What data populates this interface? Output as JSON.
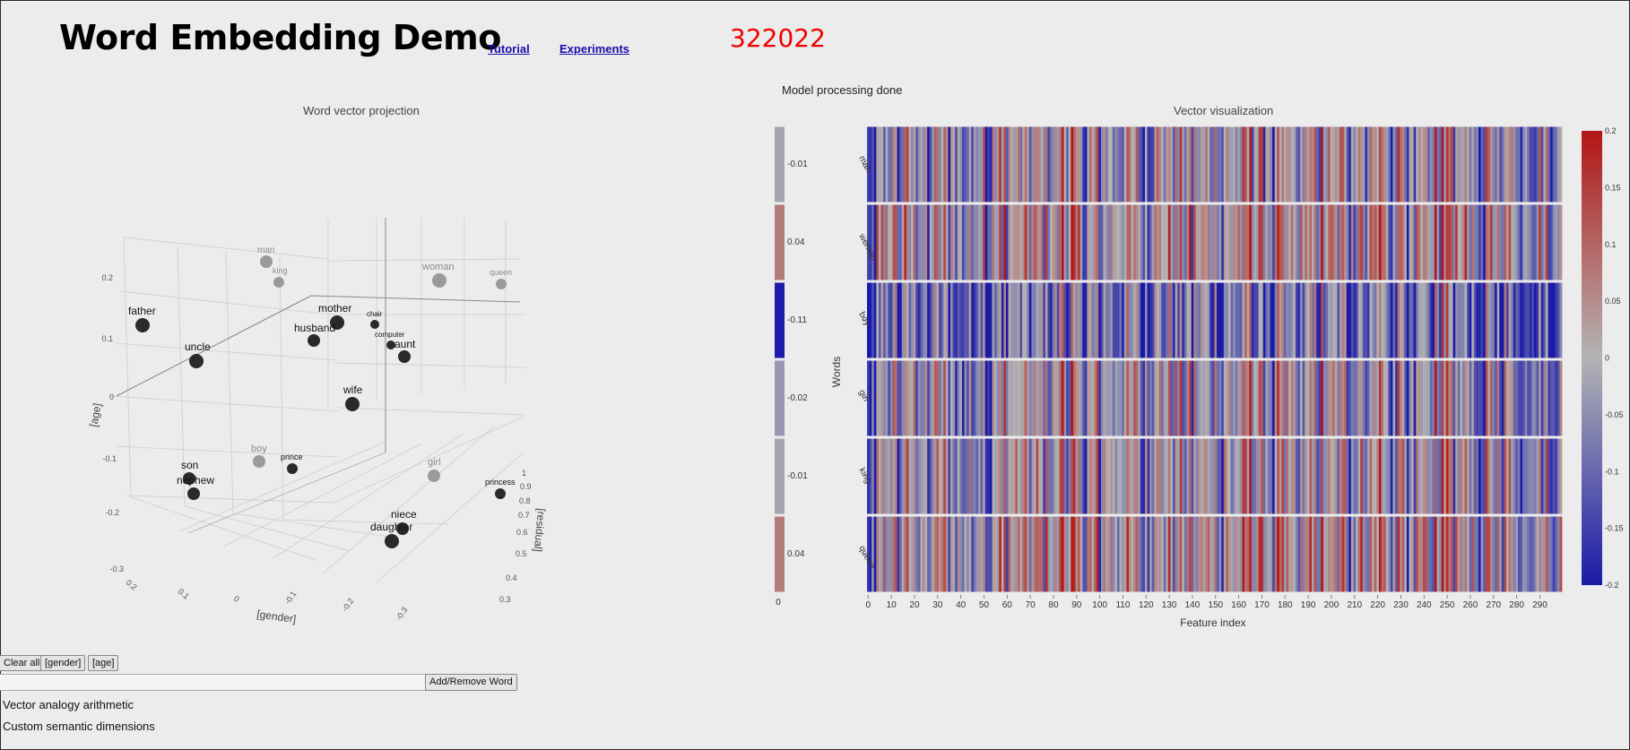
{
  "header": {
    "title": "Word Embedding Demo",
    "links": [
      "Tutorial",
      "Experiments"
    ],
    "counter": "322022"
  },
  "status": "Model processing done",
  "projection": {
    "title": "Word vector projection",
    "axes": {
      "x": "[gender]",
      "y": "[age]",
      "z": "[residual]"
    },
    "y_ticks": [
      "0.2",
      "0.1",
      "0",
      "-0.1",
      "-0.2",
      "-0.3"
    ],
    "x_ticks": [
      "0.2",
      "0.1",
      "0",
      "-0.1",
      "-0.2",
      "-0.3"
    ],
    "z_ticks": [
      "1",
      "0.9",
      "0.8",
      "0.7",
      "0.6",
      "0.5",
      "0.4",
      "0.3"
    ],
    "colors": {
      "active": "#2a2a2a",
      "inactive": "#9a9a9a"
    },
    "words": [
      {
        "label": "man",
        "style": "inactive"
      },
      {
        "label": "king",
        "style": "inactive"
      },
      {
        "label": "woman",
        "style": "inactive"
      },
      {
        "label": "queen",
        "style": "inactive"
      },
      {
        "label": "father",
        "style": "active"
      },
      {
        "label": "mother",
        "style": "active"
      },
      {
        "label": "chair",
        "style": "active"
      },
      {
        "label": "husband",
        "style": "active"
      },
      {
        "label": "computer",
        "style": "active"
      },
      {
        "label": "aunt",
        "style": "active"
      },
      {
        "label": "uncle",
        "style": "active"
      },
      {
        "label": "wife",
        "style": "active"
      },
      {
        "label": "boy",
        "style": "inactive"
      },
      {
        "label": "prince",
        "style": "active"
      },
      {
        "label": "girl",
        "style": "inactive"
      },
      {
        "label": "son",
        "style": "active"
      },
      {
        "label": "nephew",
        "style": "active"
      },
      {
        "label": "princess",
        "style": "active"
      },
      {
        "label": "niece",
        "style": "active"
      },
      {
        "label": "daughter",
        "style": "active"
      }
    ]
  },
  "controls": {
    "clear_label": "Clear all",
    "gender_label": "[gender]",
    "age_label": "[age]",
    "input_value": "",
    "add_remove_label": "Add/Remove Word"
  },
  "sections": [
    "Vector analogy arithmetic",
    "Custom semantic dimensions"
  ],
  "chart_data": {
    "type": "heatmap",
    "title": "Vector visualization",
    "xlabel": "Feature index",
    "ylabel": "Words",
    "rows": [
      "man",
      "woman",
      "boy",
      "girl",
      "king",
      "queen"
    ],
    "summary_values": [
      -0.01,
      0.04,
      -0.11,
      -0.02,
      -0.01,
      0.04
    ],
    "summary_labels": [
      "-0.01",
      "0.04",
      "-0.11",
      "-0.02",
      "-0.01",
      "0.04"
    ],
    "summary_xtick": "0",
    "x_ticks": [
      "0",
      "10",
      "20",
      "30",
      "40",
      "50",
      "60",
      "70",
      "80",
      "90",
      "100",
      "110",
      "120",
      "130",
      "140",
      "150",
      "160",
      "170",
      "180",
      "190",
      "200",
      "210",
      "220",
      "230",
      "240",
      "250",
      "260",
      "270",
      "280",
      "290"
    ],
    "xlim": [
      0,
      299
    ],
    "n_features": 300,
    "colorscale": {
      "min": -0.2,
      "max": 0.2,
      "low": "#1a1aa8",
      "mid": "#b4b4b4",
      "high": "#b31515",
      "ticks": [
        "0.2",
        "0.15",
        "0.1",
        "0.05",
        "0",
        "-0.05",
        "-0.1",
        "-0.15",
        "-0.2"
      ]
    },
    "grid": false
  }
}
